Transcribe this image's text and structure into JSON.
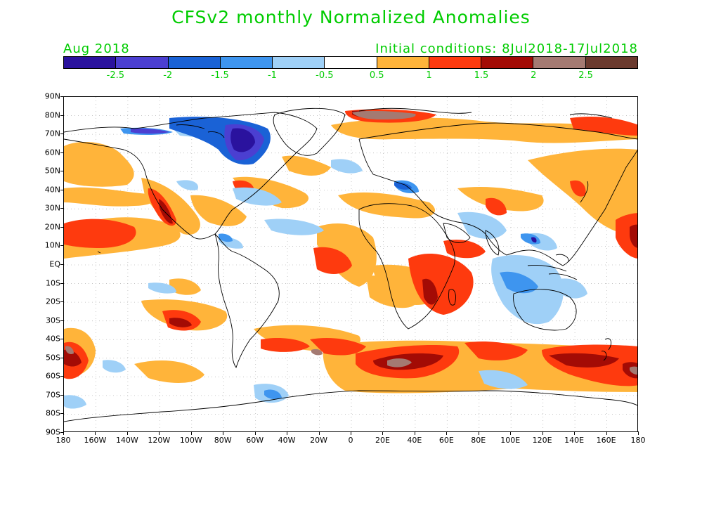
{
  "title": "CFSv2 monthly Normalized Anomalies",
  "subtitle_left": "Aug 2018",
  "subtitle_right": "Initial conditions: 8Jul2018-17Jul2018",
  "text_color": "#00cc00",
  "colorbar": {
    "colors": [
      "#2a129e",
      "#4b3fd1",
      "#1a62d6",
      "#3e95ef",
      "#9fd0f7",
      "#ffffff",
      "#ffb43a",
      "#fe3a0e",
      "#a30b05",
      "#a47a72",
      "#6b3a2e"
    ],
    "labels": [
      "-2.5",
      "-2",
      "-1.5",
      "-1",
      "-0.5",
      "0.5",
      "1",
      "1.5",
      "2",
      "2.5"
    ]
  },
  "lat_labels": [
    "90N",
    "80N",
    "70N",
    "60N",
    "50N",
    "40N",
    "30N",
    "20N",
    "10N",
    "EQ",
    "10S",
    "20S",
    "30S",
    "40S",
    "50S",
    "60S",
    "70S",
    "80S",
    "90S"
  ],
  "lon_labels": [
    "180",
    "160W",
    "140W",
    "120W",
    "100W",
    "80W",
    "60W",
    "40W",
    "20W",
    "0",
    "20E",
    "40E",
    "60E",
    "80E",
    "100E",
    "120E",
    "140E",
    "160E",
    "180"
  ]
}
